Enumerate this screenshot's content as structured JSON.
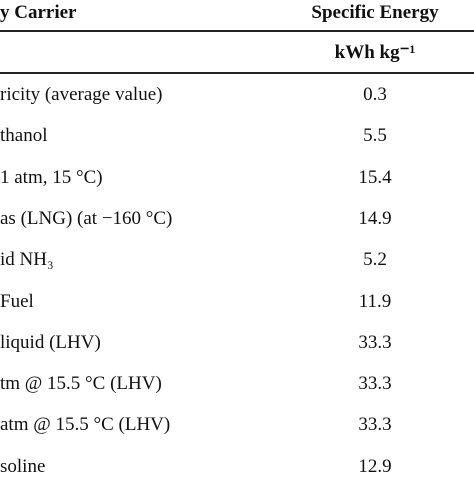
{
  "table": {
    "header": {
      "carrier": "y Carrier",
      "energy": "Specific Energy",
      "unit": "kWh kg⁻¹"
    },
    "rows": [
      [
        "ricity (average value)",
        "0.3"
      ],
      [
        "thanol",
        "5.5"
      ],
      [
        "1 atm, 15 °C)",
        "15.4"
      ],
      [
        "as (LNG) (at −160 °C)",
        "14.9"
      ],
      [
        "id NH₃",
        "5.2"
      ],
      [
        "Fuel",
        "11.9"
      ],
      [
        "liquid (LHV)",
        "33.3"
      ],
      [
        "tm @ 15.5 °C (LHV)",
        "33.3"
      ],
      [
        "atm @ 15.5 °C (LHV)",
        "33.3"
      ],
      [
        "soline",
        "12.9"
      ]
    ]
  }
}
